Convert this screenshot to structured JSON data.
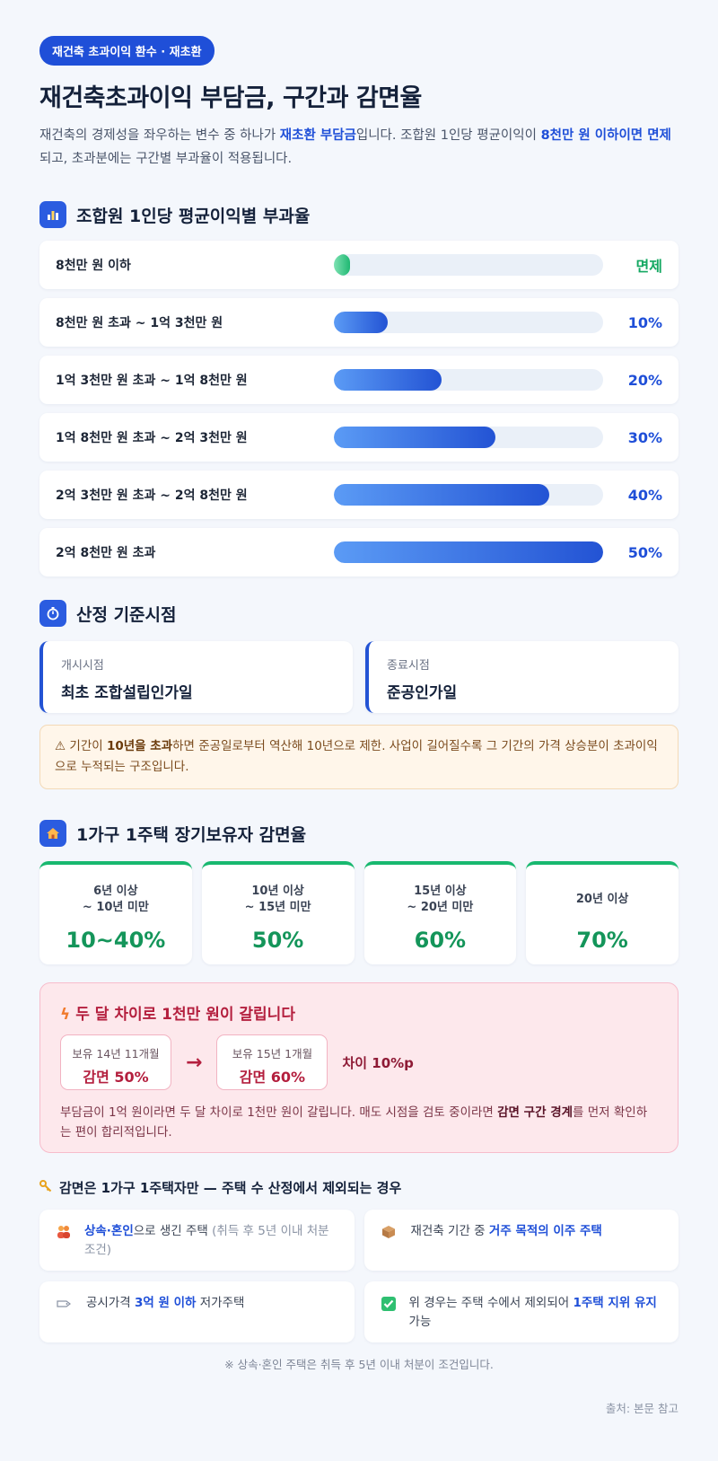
{
  "header": {
    "pill": "재건축 초과이익 환수 · 재초환",
    "title": "재건축초과이익 부담금, 구간과 감면율",
    "intro": {
      "p1": "재건축의 경제성을 좌우하는 변수 중 하나가 ",
      "hl1": "재초환 부담금",
      "p2": "입니다. 조합원 1인당 평균이익이 ",
      "hl2": "8천만 원 이하이면 면제",
      "p3": "되고, 초과분에는 구간별 부과율이 적용됩니다."
    }
  },
  "rates": {
    "icon": "bar-chart-icon",
    "title": "조합원 1인당 평균이익별 부과율",
    "rows": [
      {
        "label": "8천만 원 이하",
        "value": "면제",
        "rate": 0
      },
      {
        "label": "8천만 원 초과 ~ 1억 3천만 원",
        "value": "10%",
        "rate": 10
      },
      {
        "label": "1억 3천만 원 초과 ~ 1억 8천만 원",
        "value": "20%",
        "rate": 20
      },
      {
        "label": "1억 8천만 원 초과 ~ 2억 3천만 원",
        "value": "30%",
        "rate": 30
      },
      {
        "label": "2억 3천만 원 초과 ~ 2억 8천만 원",
        "value": "40%",
        "rate": 40
      },
      {
        "label": "2억 8천만 원 초과",
        "value": "50%",
        "rate": 50
      }
    ]
  },
  "timing": {
    "icon": "stopwatch-icon",
    "title": "산정 기준시점",
    "start_label": "개시시점",
    "start_value": "최초 조합설립인가일",
    "end_label": "종료시점",
    "end_value": "준공인가일",
    "warn": {
      "p1": "⚠ 기간이 ",
      "b1": "10년을 초과",
      "p2": "하면 준공일로부터 역산해 10년으로 제한. 사업이 길어질수록 그 기간의 가격 상승분이 초과이익으로 누적되는 구조입니다."
    }
  },
  "reduction": {
    "icon": "house-icon",
    "title": "1가구 1주택 장기보유자 감면율",
    "cards": [
      {
        "line1": "6년 이상",
        "line2": "~ 10년 미만",
        "value": "10~40%"
      },
      {
        "line1": "10년 이상",
        "line2": "~ 15년 미만",
        "value": "50%"
      },
      {
        "line1": "15년 이상",
        "line2": "~ 20년 미만",
        "value": "60%"
      },
      {
        "line1": "20년 이상",
        "line2": "",
        "value": "70%"
      }
    ]
  },
  "alert": {
    "icon": "lightning-icon",
    "title": "두 달 차이로 1천만 원이 갈립니다",
    "left_top": "보유 14년 11개월",
    "left_bot": "감면 50%",
    "arrow": "→",
    "right_top": "보유 15년 1개월",
    "right_bot": "감면 60%",
    "diff": "차이 10%p",
    "desc_p1": "부담금이 1억 원이라면 두 달 차이로 1천만 원이 갈립니다. 매도 시점을 검토 중이라면 ",
    "desc_b": "감면 구간 경계",
    "desc_p2": "를 먼저 확인하는 편이 합리적입니다."
  },
  "exclusions": {
    "icon": "key-icon",
    "title": "감면은 1가구 1주택자만 — 주택 수 산정에서 제외되는 경우",
    "items": [
      {
        "icon": "people-icon",
        "hl": "상속·혼인",
        "p1": "으로 생긴 주택 ",
        "muted": "(취득 후 5년 이내 처분 조건)",
        "p2": ""
      },
      {
        "icon": "box-icon",
        "p0": "재건축 기간 중 ",
        "hl": "거주 목적의 이주 주택"
      },
      {
        "icon": "tag-icon",
        "p0": "공시가격 ",
        "hl": "3억 원 이하",
        "p2": " 저가주택"
      },
      {
        "icon": "check-icon",
        "p0": "위 경우는 주택 수에서 제외되어 ",
        "hl": "1주택 지위 유지",
        "p2": " 가능"
      }
    ],
    "note": "※ 상속·혼인 주택은 취득 후 5년 이내 처분이 조건입니다."
  },
  "source": "출처: 본문 참고",
  "colors": {
    "accent": "#1f4fd8",
    "green": "#14955a",
    "alert": "#b41f3e"
  }
}
